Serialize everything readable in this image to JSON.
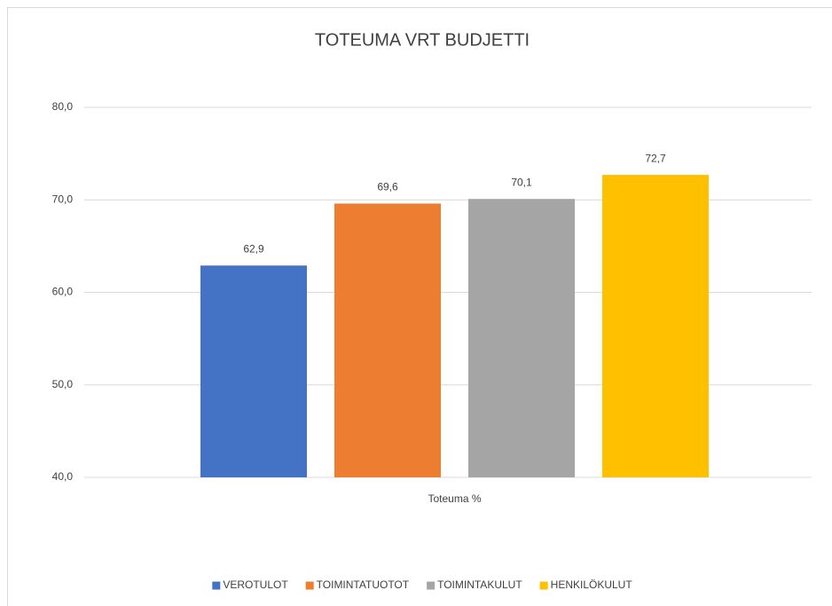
{
  "chart_data": {
    "type": "bar",
    "title": "TOTEUMA VRT BUDJETTI",
    "categories": [
      "Toteuma %"
    ],
    "series": [
      {
        "name": "VEROTULOT",
        "color": "#4472c4",
        "values": [
          62.9
        ],
        "value_labels": [
          "62,9"
        ]
      },
      {
        "name": "TOIMINTATUOTOT",
        "color": "#ed7d31",
        "values": [
          69.6
        ],
        "value_labels": [
          "69,6"
        ]
      },
      {
        "name": "TOIMINTAKULUT",
        "color": "#a5a5a5",
        "values": [
          70.1
        ],
        "value_labels": [
          "70,1"
        ]
      },
      {
        "name": "HENKILÖKULUT",
        "color": "#ffc000",
        "values": [
          72.7
        ],
        "value_labels": [
          "72,7"
        ]
      }
    ],
    "ylim": [
      40,
      80
    ],
    "yticks": [
      {
        "value": 40,
        "label": "40,0"
      },
      {
        "value": 50,
        "label": "50,0"
      },
      {
        "value": 60,
        "label": "60,0"
      },
      {
        "value": 70,
        "label": "70,0"
      },
      {
        "value": 80,
        "label": "80,0"
      }
    ],
    "grid": true,
    "legend": "bottom"
  }
}
